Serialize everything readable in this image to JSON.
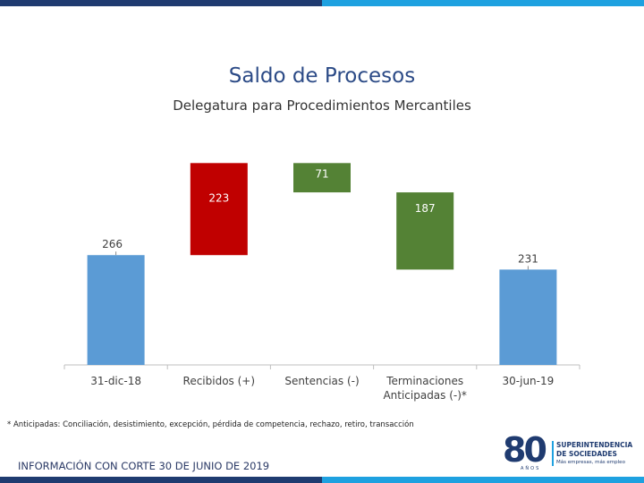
{
  "header": {
    "title": "Saldo de Procesos",
    "subtitle": "Delegatura para Procedimientos Mercantiles"
  },
  "chart_data": {
    "type": "waterfall",
    "categories": [
      "31-dic-18",
      "Recibidos (+)",
      "Sentencias (-)",
      "Terminaciones\nAnticipadas (-)*",
      "30-jun-19"
    ],
    "bars": [
      {
        "category": "31-dic-18",
        "kind": "total",
        "value": 266,
        "label": "266",
        "color": "#5b9bd5"
      },
      {
        "category": "Recibidos (+)",
        "kind": "increase",
        "value": 223,
        "label": "223",
        "color": "#c00000"
      },
      {
        "category": "Sentencias (-)",
        "kind": "decrease",
        "value": 71,
        "label": "71",
        "color": "#548235"
      },
      {
        "category": "Terminaciones Anticipadas (-)*",
        "kind": "decrease",
        "value": 187,
        "label": "187",
        "color": "#548235"
      },
      {
        "category": "30-jun-19",
        "kind": "total",
        "value": 231,
        "label": "231",
        "color": "#5b9bd5"
      }
    ],
    "ylim": [
      0,
      520
    ],
    "grid": false,
    "legend": "none"
  },
  "footnote": "* Anticipadas: Conciliación, desistimiento, excepción, pérdida de competencia, rechazo, retiro, transacción",
  "cutoff_note": "INFORMACIÓN CON CORTE 30 DE JUNIO DE 2019",
  "logo": {
    "number": "80",
    "years": "AÑOS",
    "line1": "SUPERINTENDENCIA",
    "line2": "DE SOCIEDADES",
    "line3": "Más empresas, más empleo"
  }
}
